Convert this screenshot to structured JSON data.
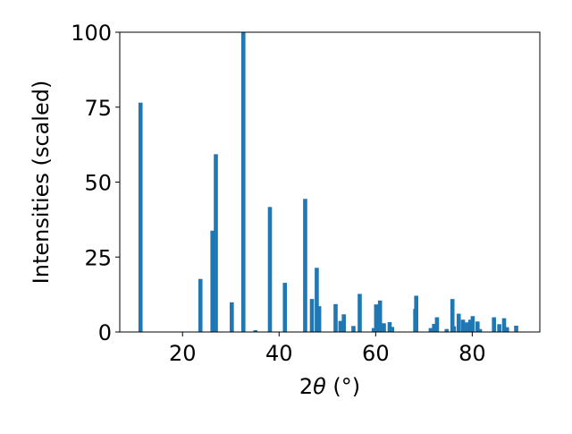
{
  "chart_data": {
    "type": "bar",
    "xlabel_prefix": "2",
    "xlabel_theta": "θ",
    "xlabel_suffix": " (°)",
    "ylabel": "Intensities (scaled)",
    "xlim": [
      7.0,
      94.0
    ],
    "ylim": [
      0,
      100
    ],
    "xticks": [
      20,
      40,
      60,
      80
    ],
    "yticks": [
      0,
      25,
      50,
      75,
      100
    ],
    "grid": false,
    "bar_color": "#1f77b4",
    "x": [
      11.3,
      23.7,
      26.2,
      26.9,
      30.2,
      32.6,
      35.1,
      38.1,
      41.2,
      45.4,
      46.8,
      47.8,
      48.3,
      51.7,
      52.7,
      53.4,
      55.4,
      56.7,
      59.6,
      60.1,
      60.9,
      61.7,
      62.9,
      63.4,
      68.2,
      68.4,
      71.4,
      72.1,
      72.7,
      74.7,
      75.9,
      76.2,
      77.2,
      78.1,
      78.9,
      79.6,
      80.1,
      81.1,
      81.6,
      84.5,
      85.6,
      86.6,
      87.2,
      89.1
    ],
    "values": [
      76.5,
      17.7,
      33.8,
      59.3,
      9.9,
      100.0,
      0.6,
      41.7,
      16.4,
      44.4,
      11.0,
      21.4,
      8.6,
      9.3,
      3.7,
      5.9,
      2.0,
      12.7,
      1.3,
      9.2,
      10.5,
      2.9,
      3.3,
      1.7,
      7.7,
      12.1,
      1.3,
      2.7,
      4.9,
      1.0,
      11.0,
      1.9,
      6.1,
      4.1,
      3.2,
      4.1,
      5.3,
      3.5,
      1.0,
      4.9,
      2.6,
      4.6,
      1.6,
      2.1
    ]
  }
}
